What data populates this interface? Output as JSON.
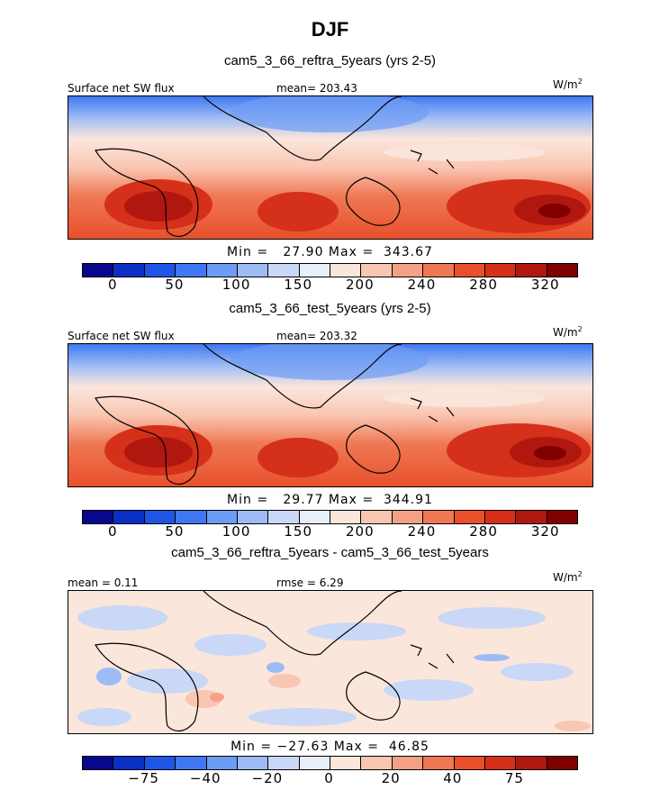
{
  "chart_data": {
    "type": "heatmap",
    "title": "DJF",
    "units_label": "W/m",
    "units_exp": "2",
    "panels": [
      {
        "subtitle": "cam5_3_66_reftra_5years (yrs 2-5)",
        "variable": "Surface net SW flux",
        "stat_left": "mean= 203.43",
        "stat_right": "",
        "minmax": "Min =   27.90 Max =  343.67",
        "colorbar_ticks": [
          "0",
          "50",
          "100",
          "150",
          "200",
          "240",
          "280",
          "320"
        ],
        "colorbar_ticks_pos": [
          1,
          3,
          5,
          7,
          9,
          11,
          13,
          15
        ],
        "value_range": [
          27.9,
          343.67
        ]
      },
      {
        "subtitle": "cam5_3_66_test_5years (yrs 2-5)",
        "variable": "Surface net SW flux",
        "stat_left": "mean= 203.32",
        "stat_right": "",
        "minmax": "Min =   29.77 Max =  344.91",
        "colorbar_ticks": [
          "0",
          "50",
          "100",
          "150",
          "200",
          "240",
          "280",
          "320"
        ],
        "colorbar_ticks_pos": [
          1,
          3,
          5,
          7,
          9,
          11,
          13,
          15
        ],
        "value_range": [
          29.77,
          344.91
        ]
      },
      {
        "subtitle": "cam5_3_66_reftra_5years - cam5_3_66_test_5years",
        "variable": "",
        "stat_left": "mean =   0.11",
        "stat_right": "rmse =   6.29",
        "minmax": "Min = −27.63 Max =  46.85",
        "colorbar_ticks": [
          "−75",
          "−40",
          "−20",
          "0",
          "20",
          "40",
          "75"
        ],
        "colorbar_ticks_pos": [
          2,
          4,
          6,
          8,
          10,
          12,
          14
        ],
        "value_range": [
          -27.63,
          46.85
        ]
      }
    ],
    "colorbar_colors": [
      "#08088c",
      "#0a2fc4",
      "#1f55e6",
      "#3f78f2",
      "#6d9cf4",
      "#9dbcf5",
      "#c8d8f6",
      "#e8eefa",
      "#fbe6dc",
      "#f9c6b2",
      "#f5a185",
      "#ef7854",
      "#e8502c",
      "#d5301a",
      "#b0180f",
      "#800000"
    ]
  }
}
